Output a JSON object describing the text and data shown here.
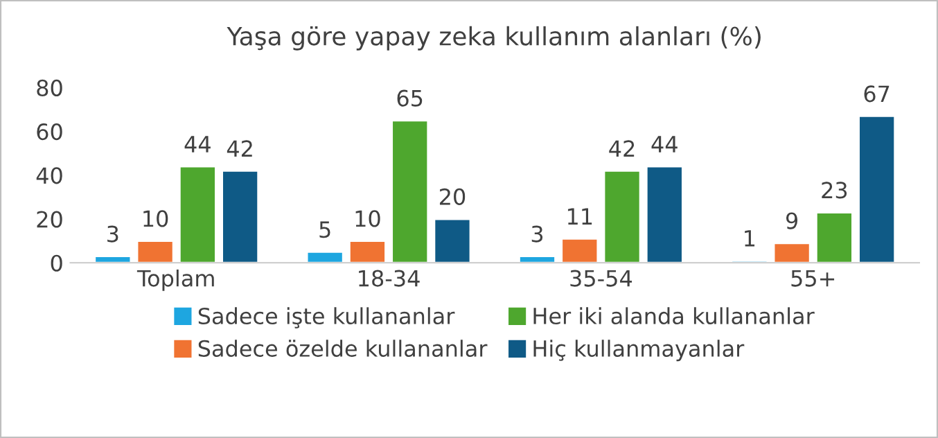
{
  "chart_data": {
    "type": "bar",
    "title": "Yaşa göre yapay zeka kullanım alanları (%)",
    "categories": [
      "Toplam",
      "18-34",
      "35-54",
      "55+"
    ],
    "series": [
      {
        "name": "Sadece işte kullananlar",
        "color": "#1ea6e0",
        "values": [
          3,
          5,
          3,
          1
        ]
      },
      {
        "name": "Sadece özelde kullananlar",
        "color": "#f07332",
        "values": [
          10,
          10,
          11,
          9
        ]
      },
      {
        "name": "Her iki alanda kullananlar",
        "color": "#4ea72e",
        "values": [
          44,
          65,
          42,
          23
        ]
      },
      {
        "name": "Hiç kullanmayanlar",
        "color": "#0f5a86",
        "values": [
          42,
          20,
          44,
          67
        ]
      }
    ],
    "ylim": [
      0,
      80
    ],
    "yticks": [
      0,
      20,
      40,
      60,
      80
    ],
    "grid": false,
    "legend": "bottom",
    "data_labels": true
  }
}
